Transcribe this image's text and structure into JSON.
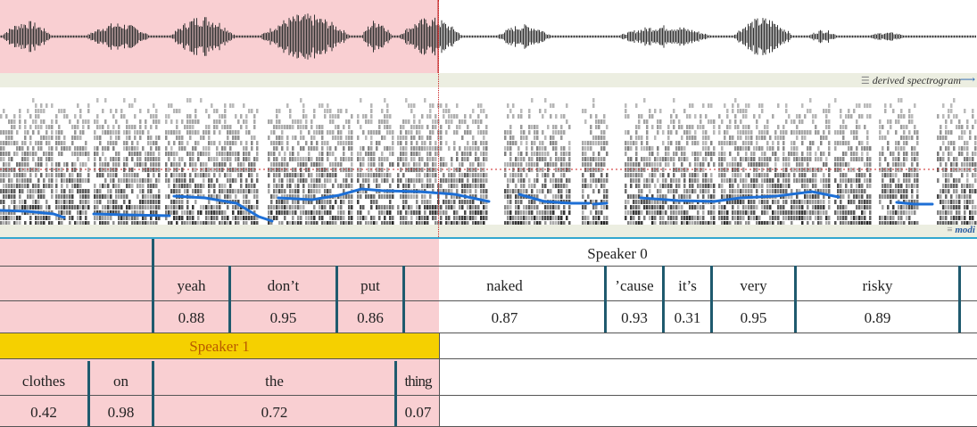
{
  "spectrogram": {
    "label": "derived spectrogram",
    "menu_icon": "hamburger-icon",
    "arrow_icon": "arrow-icon"
  },
  "modified_tier": {
    "label": "modi"
  },
  "speaker0": {
    "label": "Speaker 0",
    "words": [
      {
        "text": "yeah",
        "score": "0.88"
      },
      {
        "text": "don’t",
        "score": "0.95"
      },
      {
        "text": "put",
        "score": "0.86"
      },
      {
        "text": "",
        "score": ""
      },
      {
        "text": "naked",
        "score": "0.87"
      },
      {
        "text": "’cause",
        "score": "0.93"
      },
      {
        "text": "it’s",
        "score": "0.31"
      },
      {
        "text": "very",
        "score": "0.95"
      },
      {
        "text": "risky",
        "score": "0.89"
      }
    ]
  },
  "speaker1": {
    "label": "Speaker 1",
    "words": [
      {
        "text": "clothes",
        "score": "0.42"
      },
      {
        "text": "on",
        "score": "0.98"
      },
      {
        "text": "the",
        "score": "0.72"
      },
      {
        "text": "thing",
        "score": "0.07"
      }
    ]
  },
  "colors": {
    "selection": "#f9cfd2",
    "speaker1_header": "#f5d000",
    "speaker1_text": "#b85a00",
    "pitch": "#1d6fd6",
    "boundary": "#1f5a6e",
    "cursor": "#cc2222"
  }
}
